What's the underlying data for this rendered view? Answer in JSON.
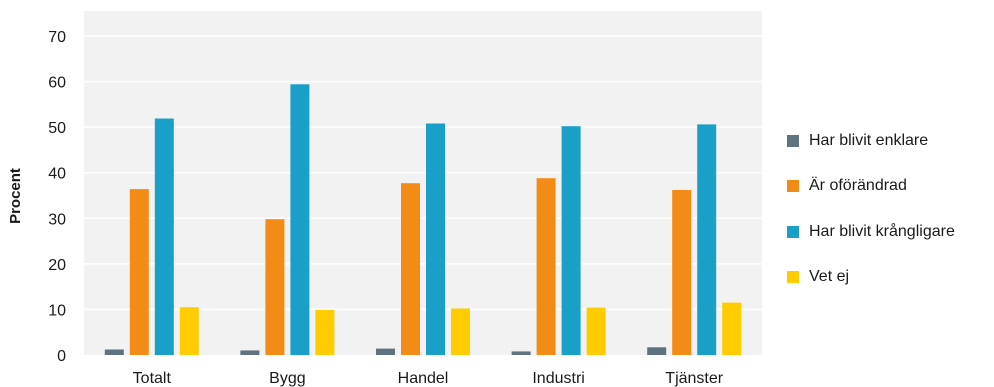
{
  "chart_data": {
    "type": "bar",
    "title": "",
    "xlabel": "",
    "ylabel": "Procent",
    "ylim": [
      0,
      75
    ],
    "yticks": [
      "0",
      "10",
      "20",
      "30",
      "40",
      "50",
      "60",
      "70"
    ],
    "grid": true,
    "legend_position": "right",
    "categories": [
      "Totalt",
      "Bygg",
      "Handel",
      "Industri",
      "Tjänster"
    ],
    "series": [
      {
        "name": "Har blivit enklare",
        "color": "#5f7280",
        "values": [
          1.2,
          1.0,
          1.4,
          0.8,
          1.7
        ]
      },
      {
        "name": "Är oförändrad",
        "color": "#f28c16",
        "values": [
          36.4,
          29.8,
          37.7,
          38.8,
          36.2
        ]
      },
      {
        "name": "Har blivit krångligare",
        "color": "#1aa0c8",
        "values": [
          51.9,
          59.4,
          50.8,
          50.2,
          50.6
        ]
      },
      {
        "name": "Vet ej",
        "color": "#ffcc00",
        "values": [
          10.5,
          9.9,
          10.2,
          10.4,
          11.5
        ]
      }
    ]
  }
}
